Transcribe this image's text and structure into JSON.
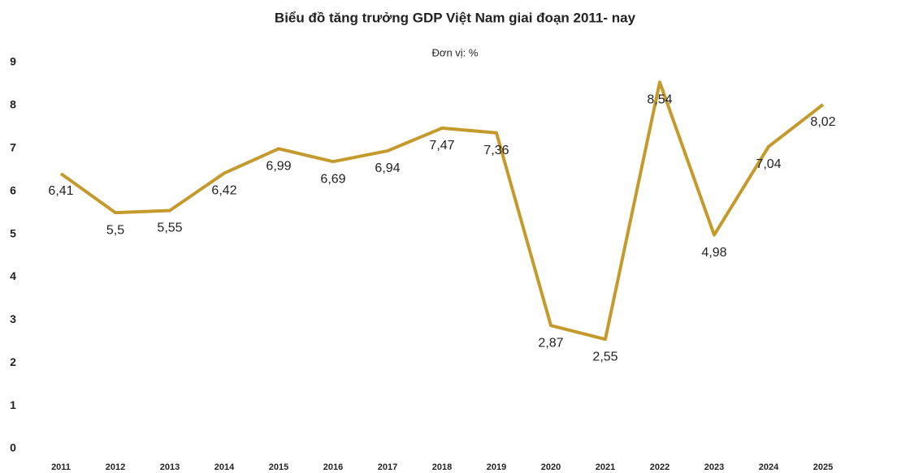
{
  "chart_data": {
    "type": "line",
    "title": "Biểu đồ tăng trưởng GDP Việt Nam giai đoạn 2011- nay",
    "subtitle": "Đơn vị: %",
    "categories": [
      "2011",
      "2012",
      "2013",
      "2014",
      "2015",
      "2016",
      "2017",
      "2018",
      "2019",
      "2020",
      "2021",
      "2022",
      "2023",
      "2024",
      "2025"
    ],
    "series": [
      {
        "name": "GDP",
        "color": "#c49a2c",
        "values": [
          6.41,
          5.5,
          5.55,
          6.42,
          6.99,
          6.69,
          6.94,
          7.47,
          7.36,
          2.87,
          2.55,
          8.54,
          4.98,
          7.04,
          8.02
        ],
        "value_labels": [
          "6,41",
          "5,5",
          "5,55",
          "6,42",
          "6,99",
          "6,69",
          "6,94",
          "7,47",
          "7,36",
          "2,87",
          "2,55",
          "8,54",
          "4,98",
          "7,04",
          "8,02"
        ]
      }
    ],
    "ylim": [
      0,
      9
    ],
    "yticks": [
      0,
      1,
      2,
      3,
      4,
      5,
      6,
      7,
      8,
      9
    ],
    "grid": false
  }
}
